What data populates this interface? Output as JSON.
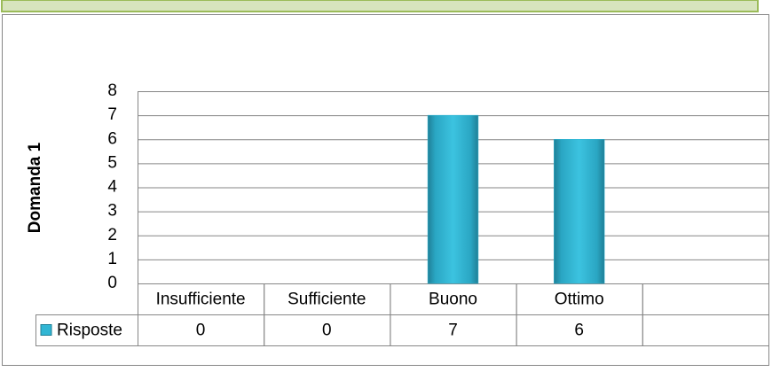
{
  "chart_data": {
    "type": "bar",
    "y_label": "Domanda 1",
    "categories": [
      "Insufficiente",
      "Sufficiente",
      "Buono",
      "Ottimo",
      null
    ],
    "series": [
      {
        "name": "Risposte",
        "color": "#31b6d4",
        "values": [
          0,
          0,
          7,
          6,
          null
        ]
      }
    ],
    "ylim": [
      0,
      8
    ],
    "yticks": [
      0,
      1,
      2,
      3,
      4,
      5,
      6,
      7,
      8
    ],
    "grid": true,
    "legend": "data-table"
  }
}
